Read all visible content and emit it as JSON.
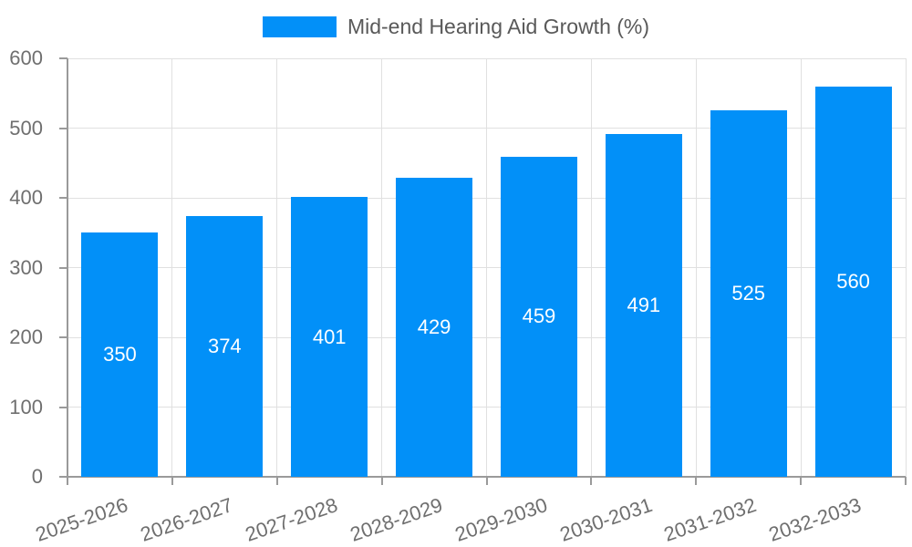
{
  "chart_data": {
    "type": "bar",
    "title": "Mid-end Hearing Aid Growth (%)",
    "legend": "Mid-end Hearing Aid Growth (%)",
    "legend_position": "top-center",
    "categories": [
      "2025-2026",
      "2026-2027",
      "2027-2028",
      "2028-2029",
      "2029-2030",
      "2030-2031",
      "2031-2032",
      "2032-2033"
    ],
    "values": [
      350,
      374,
      401,
      429,
      459,
      491,
      525,
      560
    ],
    "xlabel": "",
    "ylabel": "",
    "ylim": [
      0,
      600
    ],
    "ytick_step": 100,
    "ytick_labels": [
      "0",
      "100",
      "200",
      "300",
      "400",
      "500",
      "600"
    ],
    "grid": true,
    "value_labels_shown": true,
    "x_label_rotation_deg": -19,
    "colors": {
      "bar": "#0290F8",
      "value_label": "#ffffff",
      "axis_text": "#6f6f6f",
      "legend_text": "#595959",
      "gridline": "#e0e0e0",
      "axis_line": "#9a9a9a",
      "background": "#ffffff"
    }
  }
}
